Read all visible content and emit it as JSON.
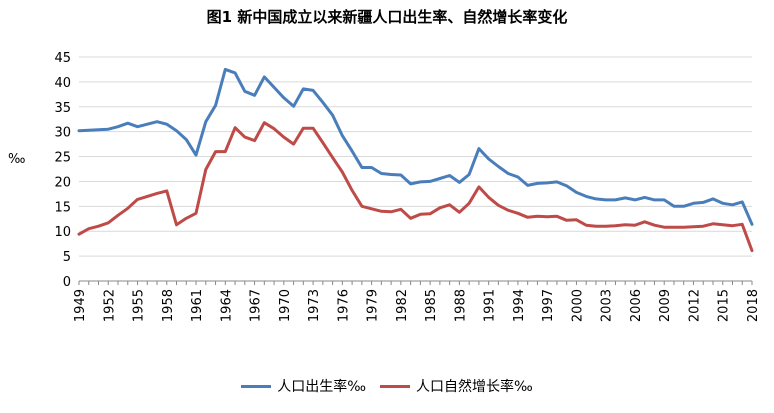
{
  "chart_data": {
    "type": "line",
    "title": "图1  新中国成立以来新疆人口出生率、自然增长率变化",
    "ylabel": "‰",
    "xlabel": "",
    "ylim": [
      0,
      45
    ],
    "yticks": [
      0,
      5,
      10,
      15,
      20,
      25,
      30,
      35,
      40,
      45
    ],
    "xticks": [
      "1949",
      "1952",
      "1955",
      "1958",
      "1961",
      "1964",
      "1967",
      "1970",
      "1973",
      "1976",
      "1979",
      "1982",
      "1985",
      "1988",
      "1991",
      "1994",
      "1997",
      "2000",
      "2003",
      "2006",
      "2009",
      "2012",
      "2015",
      "2018"
    ],
    "grid": true,
    "legend_position": "bottom",
    "x": [
      1949,
      1950,
      1951,
      1952,
      1953,
      1954,
      1955,
      1956,
      1957,
      1958,
      1959,
      1960,
      1961,
      1962,
      1963,
      1964,
      1965,
      1966,
      1967,
      1968,
      1969,
      1970,
      1971,
      1972,
      1973,
      1974,
      1975,
      1976,
      1977,
      1978,
      1979,
      1980,
      1981,
      1982,
      1983,
      1984,
      1985,
      1986,
      1987,
      1988,
      1989,
      1990,
      1991,
      1992,
      1993,
      1994,
      1995,
      1996,
      1997,
      1998,
      1999,
      2000,
      2001,
      2002,
      2003,
      2004,
      2005,
      2006,
      2007,
      2008,
      2009,
      2010,
      2011,
      2012,
      2013,
      2014,
      2015,
      2016,
      2017,
      2018
    ],
    "series": [
      {
        "name": "人口出生率‰",
        "color": "#4a7ebb",
        "values": [
          30.2,
          30.3,
          30.4,
          30.5,
          31.0,
          31.7,
          31.0,
          31.5,
          32.0,
          31.5,
          30.2,
          28.4,
          25.3,
          32.0,
          35.3,
          42.5,
          41.8,
          38.1,
          37.3,
          41.0,
          38.9,
          36.8,
          35.1,
          38.6,
          38.3,
          35.9,
          33.3,
          29.2,
          26.1,
          22.8,
          22.8,
          21.6,
          21.4,
          21.3,
          19.5,
          19.9,
          20.0,
          20.6,
          21.2,
          19.8,
          21.4,
          26.6,
          24.5,
          23.0,
          21.6,
          20.9,
          19.2,
          19.6,
          19.7,
          19.9,
          19.1,
          17.8,
          17.0,
          16.5,
          16.3,
          16.3,
          16.7,
          16.3,
          16.8,
          16.3,
          16.3,
          15.0,
          15.0,
          15.6,
          15.8,
          16.5,
          15.6,
          15.3,
          15.9,
          11.4
        ]
      },
      {
        "name": "人口自然增长率‰",
        "color": "#be4b48",
        "values": [
          9.4,
          10.5,
          11.0,
          11.7,
          13.2,
          14.6,
          16.4,
          17.0,
          17.6,
          18.1,
          11.3,
          12.6,
          13.6,
          22.4,
          26.0,
          26.0,
          30.8,
          28.9,
          28.2,
          31.8,
          30.6,
          28.9,
          27.5,
          30.7,
          30.7,
          27.8,
          24.8,
          21.9,
          18.2,
          15.0,
          14.5,
          14.0,
          13.9,
          14.4,
          12.6,
          13.4,
          13.5,
          14.7,
          15.3,
          13.8,
          15.6,
          18.9,
          16.8,
          15.2,
          14.2,
          13.6,
          12.8,
          13.0,
          12.9,
          13.0,
          12.2,
          12.3,
          11.2,
          11.0,
          11.0,
          11.1,
          11.3,
          11.2,
          11.9,
          11.2,
          10.8,
          10.8,
          10.8,
          10.9,
          11.0,
          11.5,
          11.3,
          11.1,
          11.4,
          6.1
        ]
      }
    ]
  }
}
